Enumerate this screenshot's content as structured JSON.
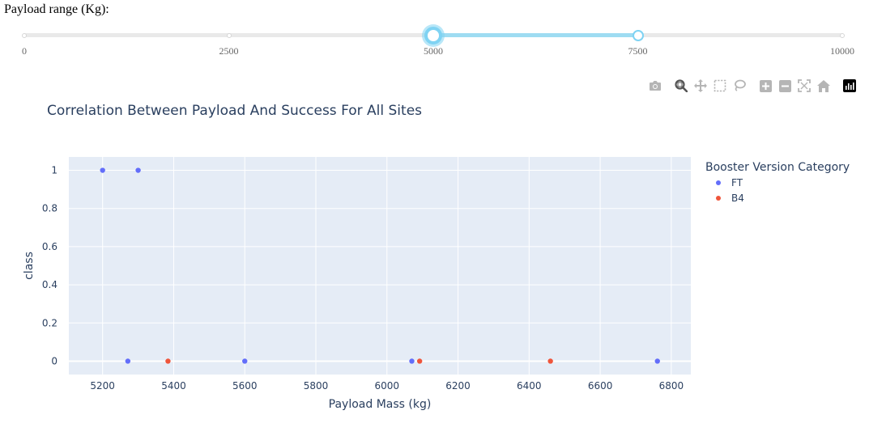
{
  "range_slider": {
    "label": "Payload range (Kg):",
    "min": 0,
    "max": 10000,
    "marks": [
      "0",
      "2500",
      "5000",
      "7500",
      "10000"
    ],
    "value": [
      5000,
      7500
    ]
  },
  "modebar": {
    "icons": [
      "camera-icon",
      "zoom-icon",
      "pan-icon",
      "box-select-icon",
      "lasso-icon",
      "zoom-in-icon",
      "zoom-out-icon",
      "autoscale-icon",
      "reset-axes-icon",
      "plotly-logo"
    ]
  },
  "chart_data": {
    "type": "scatter",
    "title": "Correlation Between Payload And Success For All Sites",
    "xlabel": "Payload Mass (kg)",
    "ylabel": "class",
    "xlim": [
      5105,
      6855
    ],
    "ylim": [
      -0.07,
      1.07
    ],
    "x_ticks": [
      5200,
      5400,
      5600,
      5800,
      6000,
      6200,
      6400,
      6600,
      6800
    ],
    "y_ticks": [
      {
        "value": 1,
        "label": "1"
      },
      {
        "value": 0.8,
        "label": "0.8"
      },
      {
        "value": 0.6,
        "label": "0.6"
      },
      {
        "value": 0.4,
        "label": "0.4"
      },
      {
        "value": 0.2,
        "label": "0.2"
      },
      {
        "value": 0,
        "label": "0"
      }
    ],
    "legend_title": "Booster Version Category",
    "legend_position": "right",
    "grid": true,
    "series": [
      {
        "name": "FT",
        "color": "#636efa",
        "points": [
          [
            5200,
            1
          ],
          [
            5300,
            1
          ],
          [
            5271,
            0
          ],
          [
            5600,
            0
          ],
          [
            6070,
            0
          ],
          [
            6761,
            0
          ]
        ]
      },
      {
        "name": "B4",
        "color": "#ef553b",
        "points": [
          [
            5384,
            0
          ],
          [
            6092,
            0
          ],
          [
            6460,
            0
          ]
        ]
      }
    ]
  }
}
